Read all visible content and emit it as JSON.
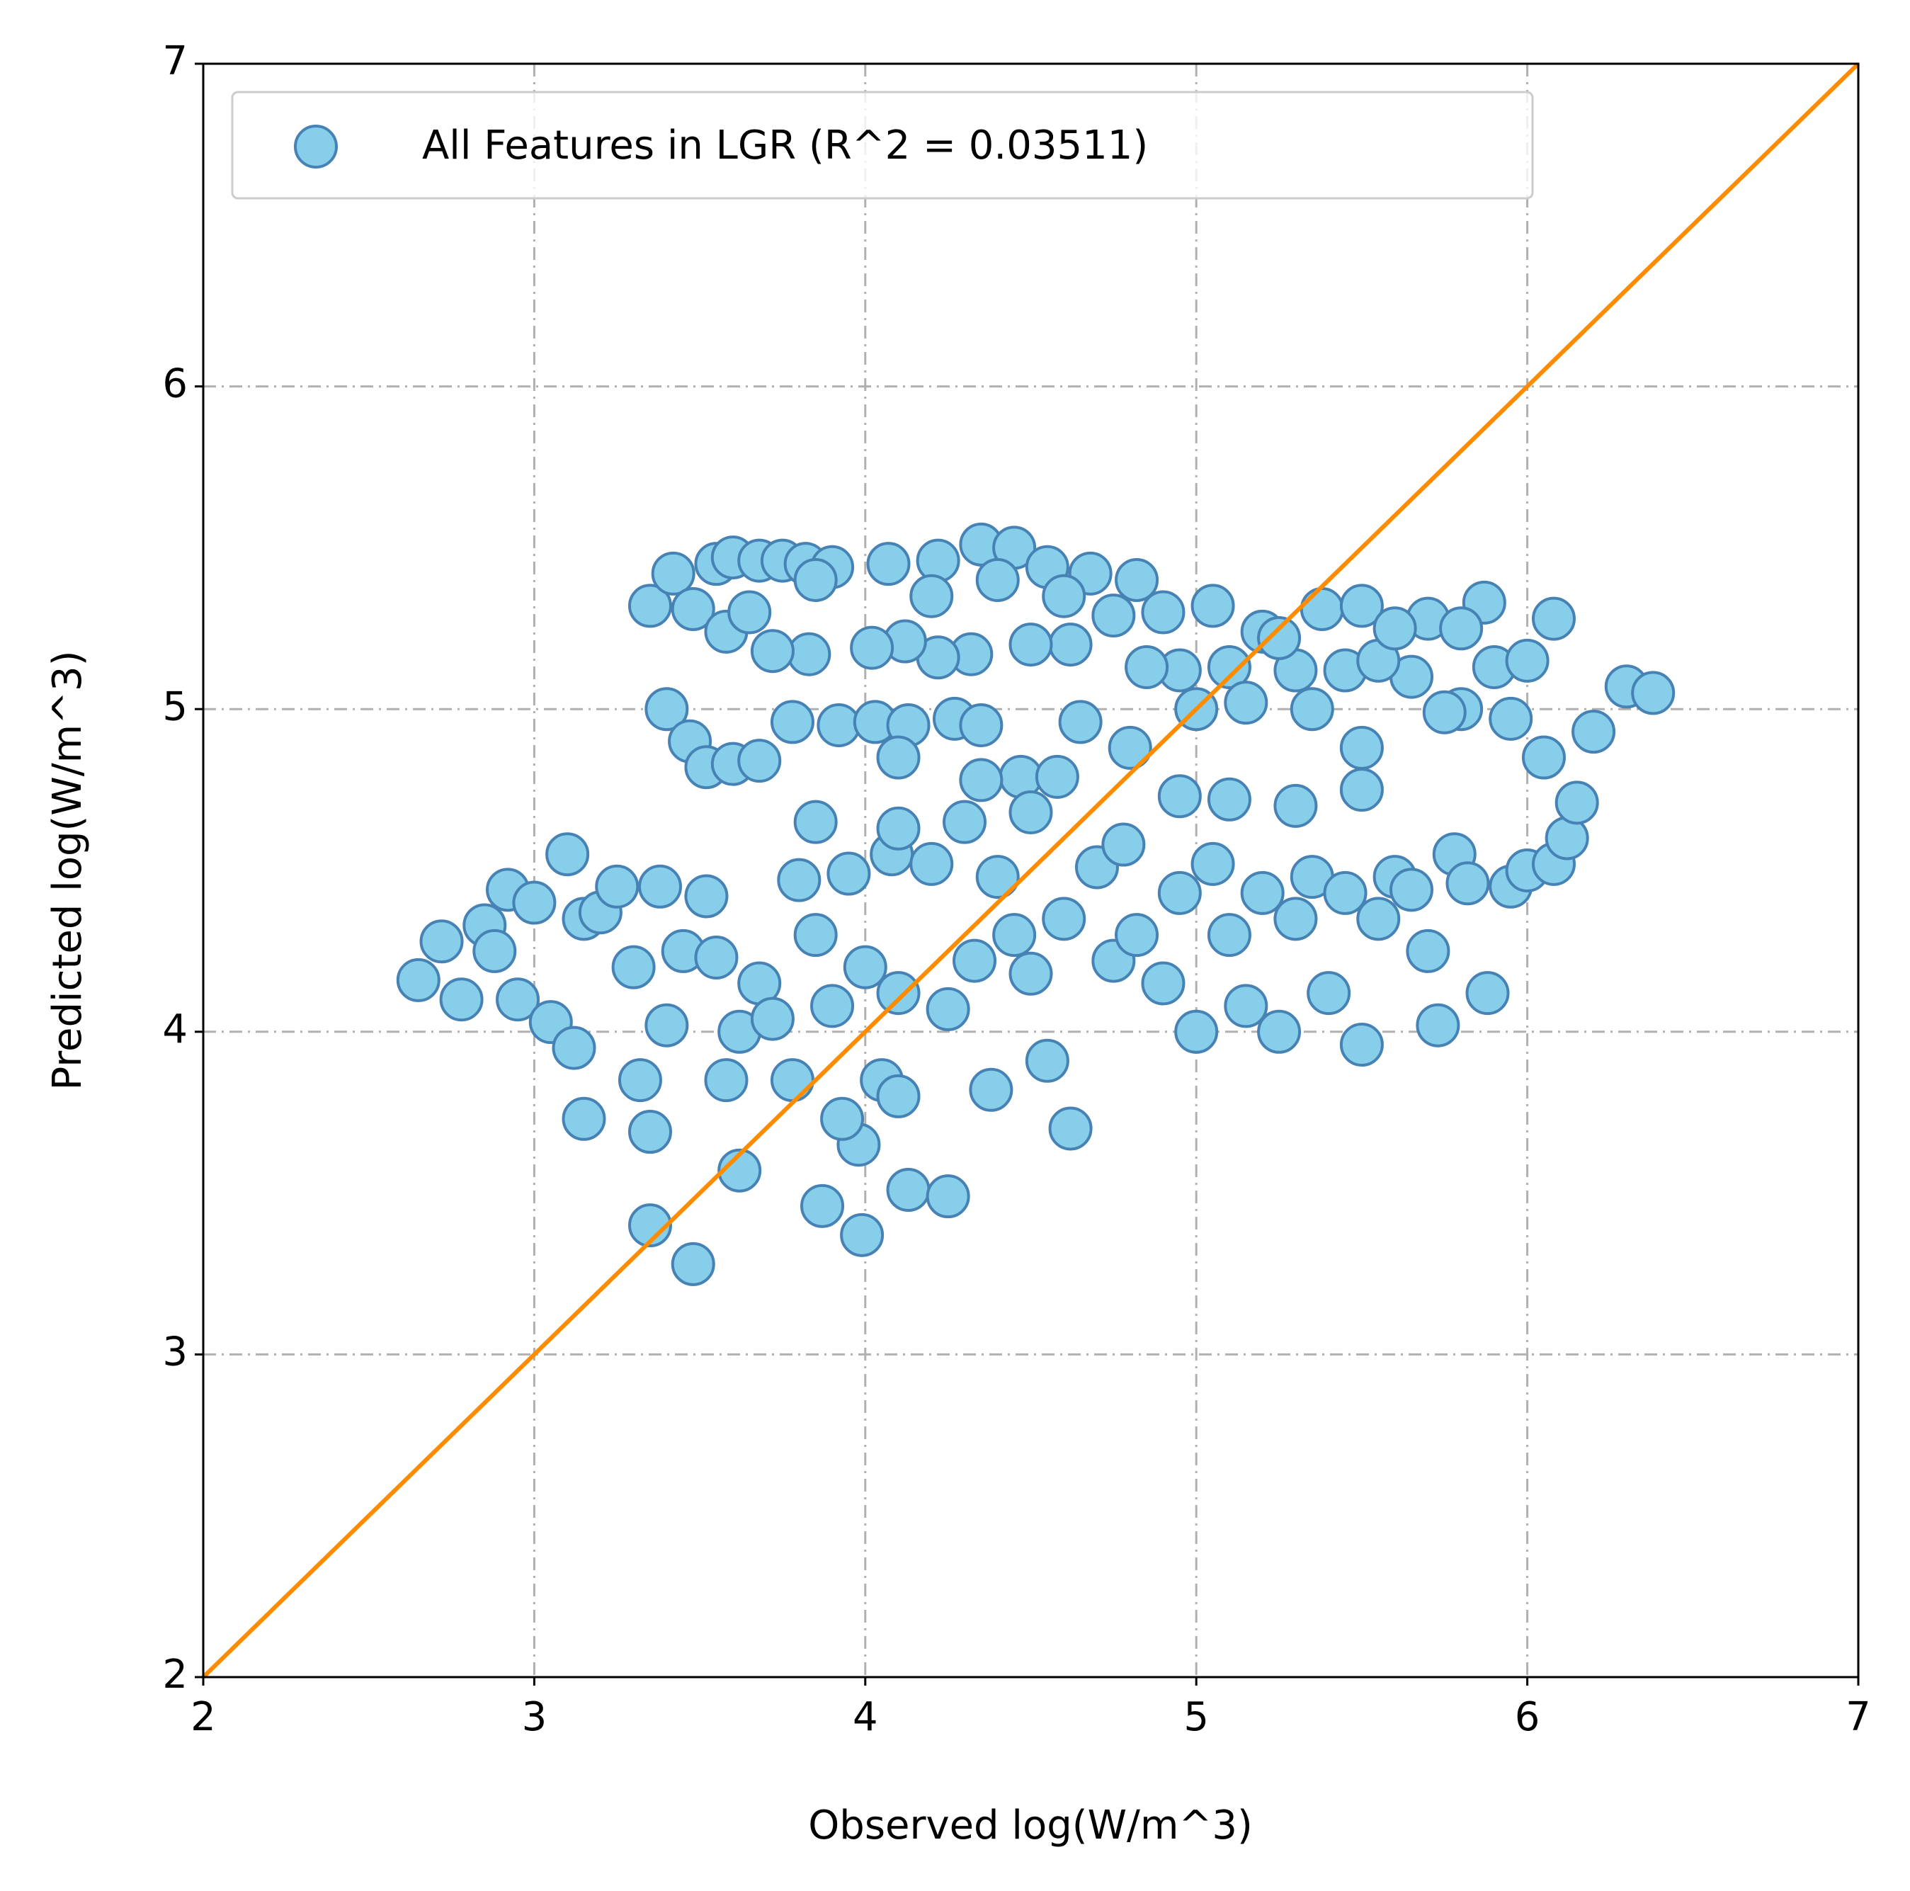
{
  "chart_data": {
    "type": "scatter",
    "xlabel": "Observed log(W/m^3)",
    "ylabel": "Predicted log(W/m^3)",
    "xlim": [
      2,
      7
    ],
    "ylim": [
      2,
      7
    ],
    "xticks": [
      2,
      3,
      4,
      5,
      6,
      7
    ],
    "yticks": [
      2,
      3,
      4,
      5,
      6,
      7
    ],
    "grid": true,
    "legend": "upper left",
    "series": [
      {
        "name": "All Features in LGR (R^2 = 0.03511)",
        "color": "#87ceeb",
        "edgecolor": "#4682b4",
        "x": [
          3.35,
          3.42,
          3.48,
          3.55,
          3.6,
          3.68,
          3.75,
          3.82,
          3.9,
          4.07,
          4.22,
          4.35,
          4.45,
          4.55,
          4.68,
          4.82,
          4.9,
          5.05,
          5.2,
          5.38,
          5.5,
          5.7,
          5.87,
          6.08,
          6.3,
          6.38,
          6.2,
          6.05,
          5.95,
          5.8,
          5.65,
          5.45,
          5.3,
          5.1,
          4.95,
          4.85,
          4.75,
          4.62,
          4.5,
          4.32,
          4.22,
          4.12,
          4.02,
          3.83,
          3.72,
          3.58,
          3.4,
          3.47,
          3.52,
          3.6,
          3.68,
          3.78,
          3.92,
          4.03,
          4.13,
          4.27,
          4.35,
          4.47,
          4.58,
          4.65,
          4.8,
          5.0,
          5.15,
          5.35,
          5.5,
          5.75,
          5.9,
          6.0,
          5.55,
          4.1,
          4.35,
          3.85,
          3.65,
          4.2,
          4.4,
          4.6,
          5.25,
          5.6,
          5.8,
          2.65,
          2.72,
          2.78,
          2.85,
          2.88,
          2.92,
          2.95,
          3.0,
          3.05,
          3.1,
          3.15,
          3.12,
          3.2,
          3.25,
          3.3,
          3.32,
          3.38,
          3.4,
          3.45,
          3.52,
          3.55,
          3.58,
          3.62,
          3.68,
          3.72,
          3.78,
          3.8,
          3.85,
          3.9,
          3.95,
          4.0,
          4.05,
          4.08,
          4.1,
          4.2,
          4.25,
          4.33,
          4.4,
          4.45,
          4.5,
          4.55,
          4.6,
          4.7,
          4.75,
          4.78,
          4.82,
          4.9,
          4.95,
          5.0,
          5.05,
          5.1,
          5.15,
          5.2,
          5.25,
          5.3,
          5.35,
          5.4,
          5.45,
          5.5,
          5.55,
          5.6,
          5.65,
          5.7,
          5.73,
          5.78,
          5.82,
          5.88,
          5.95,
          6.0,
          6.08,
          6.12,
          6.15,
          5.5,
          5.3,
          5.1,
          4.95,
          4.5,
          4.3,
          4.1,
          3.85,
          3.15,
          4.62,
          3.35,
          3.48,
          3.87,
          3.99,
          4.13,
          4.25,
          3.35,
          3.62,
          3.98,
          4.38,
          3.93,
          4.1
        ],
        "y": [
          5.32,
          5.42,
          5.31,
          5.45,
          5.47,
          5.46,
          5.46,
          5.45,
          5.44,
          5.45,
          5.46,
          5.51,
          5.5,
          5.44,
          5.42,
          5.4,
          5.3,
          5.32,
          5.24,
          5.31,
          5.32,
          5.28,
          5.33,
          5.28,
          5.07,
          5.05,
          4.93,
          4.85,
          4.97,
          5.0,
          5.1,
          5.12,
          5.12,
          5.13,
          5.12,
          5.13,
          5.29,
          5.2,
          5.2,
          5.17,
          5.16,
          5.21,
          5.19,
          5.17,
          5.18,
          5.24,
          5.0,
          4.9,
          4.82,
          4.83,
          4.84,
          4.96,
          4.95,
          4.96,
          4.95,
          4.97,
          4.95,
          4.79,
          4.79,
          4.96,
          4.88,
          5.0,
          5.02,
          5.0,
          4.88,
          4.99,
          5.13,
          5.15,
          5.15,
          4.85,
          4.78,
          5.4,
          5.3,
          5.35,
          5.4,
          5.35,
          5.22,
          5.25,
          5.25,
          4.16,
          4.28,
          4.1,
          4.33,
          4.25,
          4.44,
          4.1,
          4.4,
          4.03,
          4.55,
          4.35,
          3.95,
          4.37,
          4.45,
          4.2,
          3.85,
          4.45,
          4.02,
          4.25,
          4.42,
          4.23,
          3.85,
          4.0,
          4.15,
          4.04,
          3.85,
          4.47,
          4.3,
          4.08,
          4.49,
          4.2,
          3.85,
          4.55,
          4.12,
          4.52,
          4.07,
          4.22,
          4.48,
          4.3,
          4.18,
          3.91,
          4.35,
          4.51,
          4.22,
          4.58,
          4.3,
          4.15,
          4.43,
          4.0,
          4.52,
          4.3,
          4.08,
          4.43,
          4.0,
          4.35,
          4.48,
          4.12,
          4.43,
          3.96,
          4.35,
          4.48,
          4.44,
          4.25,
          4.02,
          4.55,
          4.46,
          4.12,
          4.45,
          4.5,
          4.52,
          4.6,
          4.71,
          4.75,
          4.7,
          4.72,
          4.73,
          4.68,
          4.65,
          4.63,
          4.65,
          3.73,
          3.7,
          3.4,
          3.28,
          3.46,
          3.37,
          3.51,
          3.49,
          3.69,
          3.57,
          3.65,
          3.82,
          3.73,
          3.8
        ]
      }
    ],
    "reference_line": {
      "x": [
        2,
        7
      ],
      "y": [
        2,
        7
      ],
      "color": "#ff8c00"
    }
  }
}
